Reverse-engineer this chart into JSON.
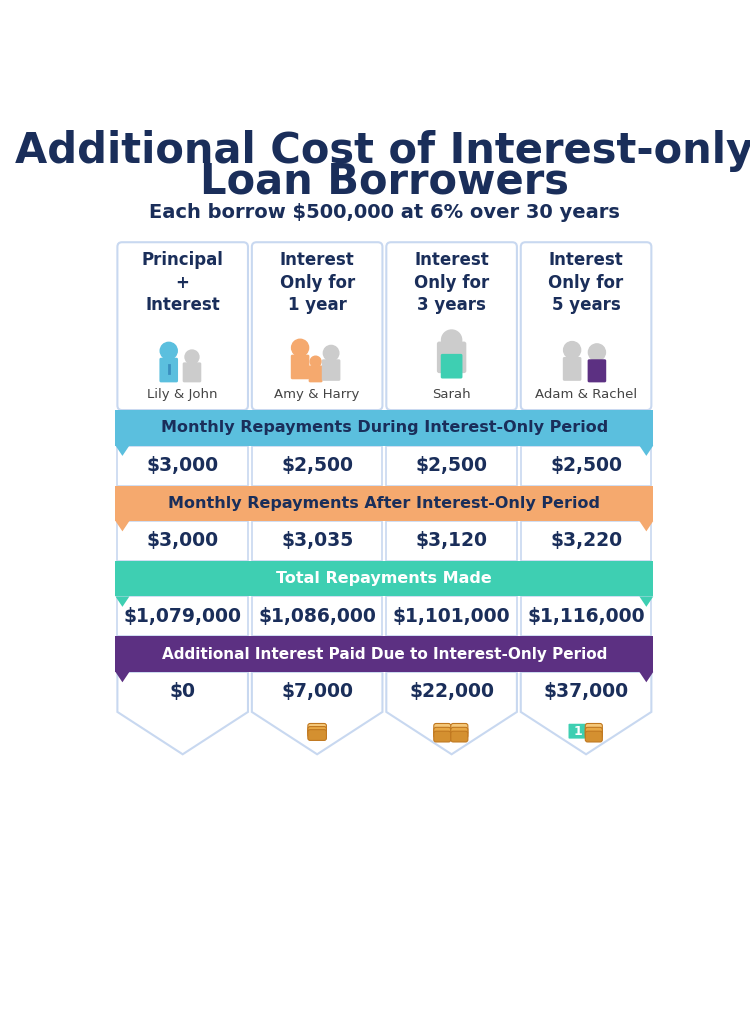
{
  "title_line1": "Additional Cost of Interest-only",
  "title_line2": "Loan Borrowers",
  "subtitle": "Each borrow $500,000 at 6% over 30 years",
  "title_color": "#1a2e5a",
  "subtitle_color": "#1a2e5a",
  "columns": [
    "Principal\n+\nInterest",
    "Interest\nOnly for\n1 year",
    "Interest\nOnly for\n3 years",
    "Interest\nOnly for\n5 years"
  ],
  "names": [
    "Lily & John",
    "Amy & Harry",
    "Sarah",
    "Adam & Rachel"
  ],
  "section_headers": [
    "Monthly Repayments During Interest-Only Period",
    "Monthly Repayments After Interest-Only Period",
    "Total Repayments Made",
    "Additional Interest Paid Due to Interest-Only Period"
  ],
  "section_colors": [
    "#5bbfde",
    "#f5a96e",
    "#3ecfb2",
    "#5c3082"
  ],
  "section_text_colors": [
    "#1a2e5a",
    "#1a2e5a",
    "#ffffff",
    "#ffffff"
  ],
  "row1_values": [
    "$3,000",
    "$2,500",
    "$2,500",
    "$2,500"
  ],
  "row2_values": [
    "$3,000",
    "$3,035",
    "$3,120",
    "$3,220"
  ],
  "row3_values": [
    "$1,079,000",
    "$1,086,000",
    "$1,101,000",
    "$1,116,000"
  ],
  "row4_values": [
    "$0",
    "$7,000",
    "$22,000",
    "$37,000"
  ],
  "bg_color": "#ffffff",
  "card_border_color": "#c8d8f0",
  "value_color": "#1a2e5a",
  "col_header_color": "#1a2e5a",
  "icon_colors_primary": [
    "#5bbfde",
    "#f5a96e",
    "#3ecfb2",
    "#5c3082"
  ],
  "icon_colors_secondary": [
    "#aaaaaa",
    "#f5a96e",
    "#aaaaaa",
    "#aaaaaa"
  ]
}
